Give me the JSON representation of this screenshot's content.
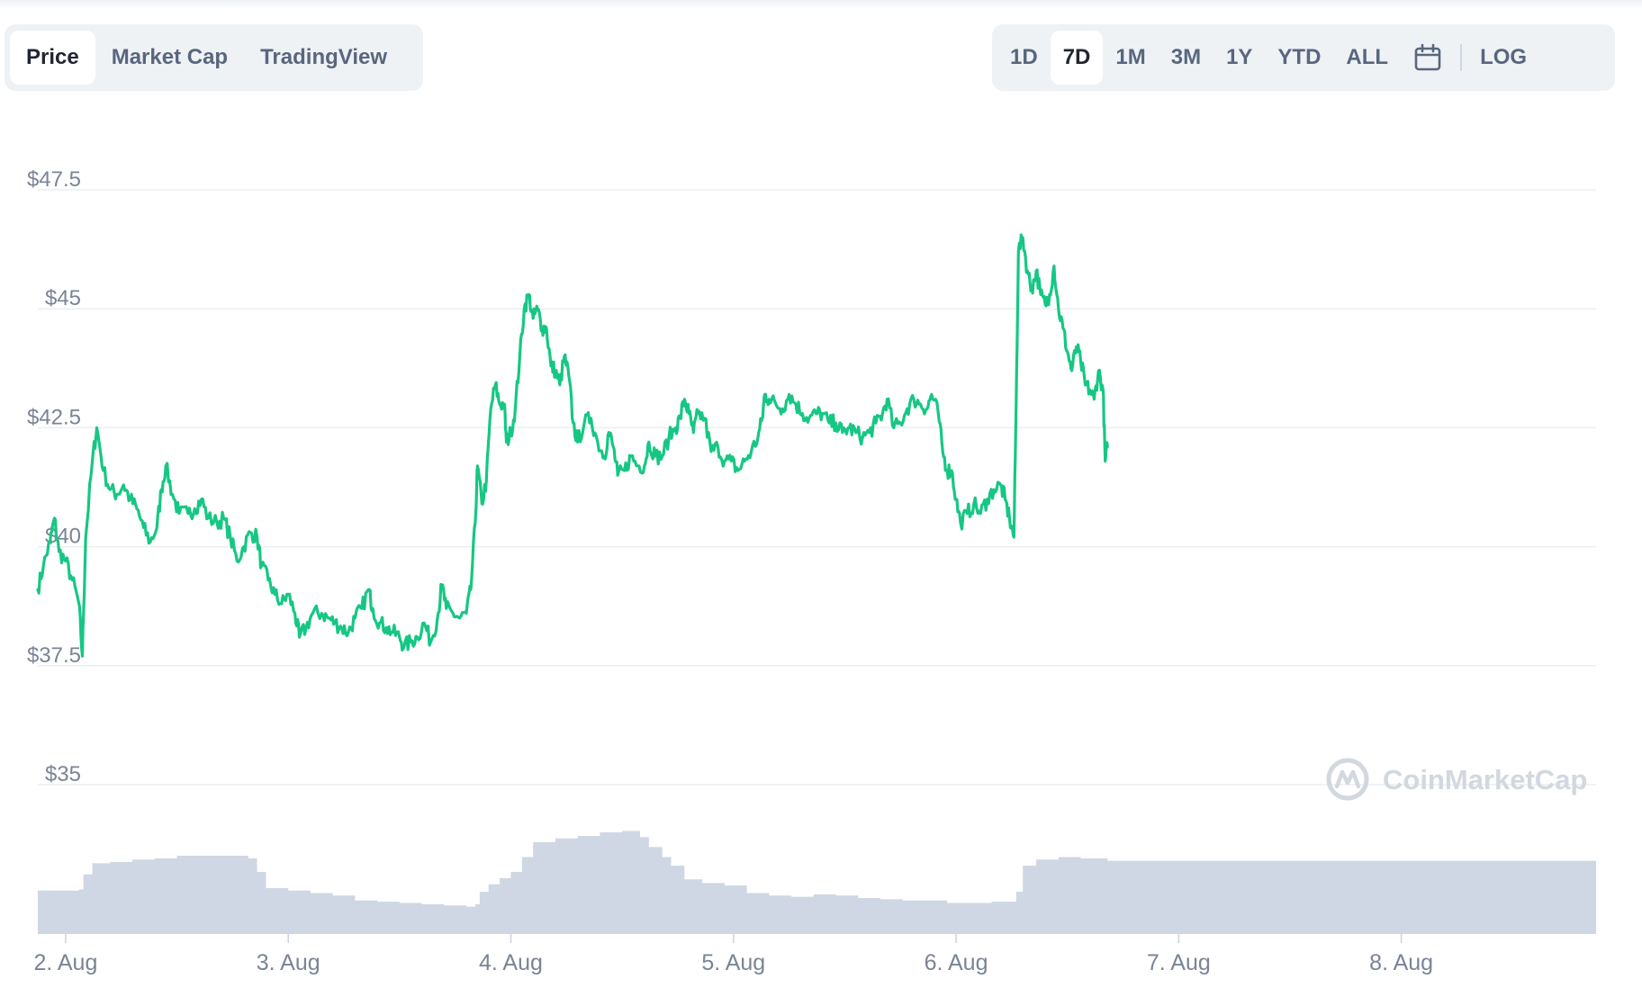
{
  "view_tabs": [
    {
      "label": "Price",
      "active": true
    },
    {
      "label": "Market Cap",
      "active": false
    },
    {
      "label": "TradingView",
      "active": false
    }
  ],
  "ranges": [
    {
      "label": "1D",
      "active": false
    },
    {
      "label": "7D",
      "active": true
    },
    {
      "label": "1M",
      "active": false
    },
    {
      "label": "3M",
      "active": false
    },
    {
      "label": "1Y",
      "active": false
    },
    {
      "label": "YTD",
      "active": false
    },
    {
      "label": "ALL",
      "active": false
    }
  ],
  "calendar_icon": "calendar-icon",
  "log_label": "LOG",
  "watermark": "CoinMarketCap",
  "colors": {
    "line": "#16c784",
    "volume": "#cfd6e4",
    "grid": "#eceef2",
    "axis_text": "#7a8496"
  },
  "chart_data": {
    "type": "line",
    "title": "",
    "xlabel": "",
    "ylabel": "",
    "y_ticks": [
      {
        "value": 47.5,
        "label": "$47.5"
      },
      {
        "value": 45,
        "label": "$45"
      },
      {
        "value": 42.5,
        "label": "$42.5"
      },
      {
        "value": 40,
        "label": "$40"
      },
      {
        "value": 37.5,
        "label": "$37.5"
      },
      {
        "value": 35,
        "label": "$35"
      }
    ],
    "ylim": [
      34.5,
      48.5
    ],
    "x_ticks": [
      {
        "t": 1.5,
        "label": "2. Aug"
      },
      {
        "t": 2.5,
        "label": "3. Aug"
      },
      {
        "t": 3.5,
        "label": "4. Aug"
      },
      {
        "t": 4.5,
        "label": "5. Aug"
      },
      {
        "t": 5.5,
        "label": "6. Aug"
      },
      {
        "t": 6.5,
        "label": "7. Aug"
      },
      {
        "t": 7.5,
        "label": "8. Aug"
      }
    ],
    "xlim": [
      1.375,
      8.375
    ],
    "grid": true,
    "series": [
      {
        "points": [
          [
            1.375,
            39.1
          ],
          [
            1.4,
            39.6
          ],
          [
            1.43,
            40.1
          ],
          [
            1.45,
            40.6
          ],
          [
            1.47,
            39.9
          ],
          [
            1.5,
            39.7
          ],
          [
            1.53,
            39.3
          ],
          [
            1.56,
            38.8
          ],
          [
            1.575,
            37.7
          ],
          [
            1.59,
            40.2
          ],
          [
            1.62,
            41.8
          ],
          [
            1.64,
            42.5
          ],
          [
            1.67,
            41.6
          ],
          [
            1.7,
            41.2
          ],
          [
            1.73,
            41.1
          ],
          [
            1.76,
            41.3
          ],
          [
            1.79,
            41.0
          ],
          [
            1.82,
            40.8
          ],
          [
            1.85,
            40.4
          ],
          [
            1.88,
            40.1
          ],
          [
            1.91,
            40.4
          ],
          [
            1.93,
            41.2
          ],
          [
            1.95,
            41.7
          ],
          [
            1.98,
            41.1
          ],
          [
            2.01,
            40.7
          ],
          [
            2.05,
            40.7
          ],
          [
            2.08,
            40.8
          ],
          [
            2.11,
            41.0
          ],
          [
            2.14,
            40.6
          ],
          [
            2.18,
            40.5
          ],
          [
            2.21,
            40.6
          ],
          [
            2.24,
            40.2
          ],
          [
            2.27,
            39.7
          ],
          [
            2.3,
            40.0
          ],
          [
            2.33,
            40.3
          ],
          [
            2.36,
            40.2
          ],
          [
            2.38,
            39.6
          ],
          [
            2.41,
            39.3
          ],
          [
            2.44,
            39.0
          ],
          [
            2.47,
            38.8
          ],
          [
            2.5,
            39.0
          ],
          [
            2.53,
            38.6
          ],
          [
            2.55,
            38.1
          ],
          [
            2.58,
            38.3
          ],
          [
            2.61,
            38.6
          ],
          [
            2.65,
            38.6
          ],
          [
            2.68,
            38.5
          ],
          [
            2.71,
            38.4
          ],
          [
            2.74,
            38.3
          ],
          [
            2.77,
            38.2
          ],
          [
            2.8,
            38.5
          ],
          [
            2.83,
            38.7
          ],
          [
            2.86,
            39.1
          ],
          [
            2.88,
            38.7
          ],
          [
            2.91,
            38.4
          ],
          [
            2.94,
            38.3
          ],
          [
            2.97,
            38.2
          ],
          [
            3.0,
            38.1
          ],
          [
            3.02,
            37.9
          ],
          [
            3.05,
            38.0
          ],
          [
            3.08,
            38.1
          ],
          [
            3.11,
            38.4
          ],
          [
            3.14,
            38.0
          ],
          [
            3.17,
            38.5
          ],
          [
            3.19,
            39.2
          ],
          [
            3.21,
            38.7
          ],
          [
            3.24,
            38.6
          ],
          [
            3.27,
            38.5
          ],
          [
            3.3,
            38.6
          ],
          [
            3.32,
            39.1
          ],
          [
            3.34,
            40.5
          ],
          [
            3.35,
            41.7
          ],
          [
            3.37,
            40.9
          ],
          [
            3.39,
            41.4
          ],
          [
            3.41,
            42.9
          ],
          [
            3.43,
            43.4
          ],
          [
            3.45,
            43.0
          ],
          [
            3.47,
            43.0
          ],
          [
            3.48,
            42.2
          ],
          [
            3.5,
            42.4
          ],
          [
            3.52,
            42.9
          ],
          [
            3.54,
            44.0
          ],
          [
            3.56,
            45.0
          ],
          [
            3.58,
            45.3
          ],
          [
            3.6,
            44.8
          ],
          [
            3.62,
            45.0
          ],
          [
            3.64,
            44.6
          ],
          [
            3.66,
            44.6
          ],
          [
            3.68,
            43.8
          ],
          [
            3.7,
            43.7
          ],
          [
            3.72,
            43.4
          ],
          [
            3.74,
            44.0
          ],
          [
            3.76,
            43.6
          ],
          [
            3.78,
            42.6
          ],
          [
            3.8,
            42.2
          ],
          [
            3.83,
            42.6
          ],
          [
            3.86,
            42.7
          ],
          [
            3.89,
            42.2
          ],
          [
            3.92,
            41.9
          ],
          [
            3.94,
            42.4
          ],
          [
            3.96,
            42.1
          ],
          [
            3.98,
            41.5
          ],
          [
            4.01,
            41.6
          ],
          [
            4.04,
            41.9
          ],
          [
            4.07,
            41.7
          ],
          [
            4.1,
            41.7
          ],
          [
            4.12,
            42.2
          ],
          [
            4.15,
            41.9
          ],
          [
            4.18,
            41.9
          ],
          [
            4.21,
            42.3
          ],
          [
            4.24,
            42.5
          ],
          [
            4.26,
            42.7
          ],
          [
            4.28,
            43.1
          ],
          [
            4.3,
            42.8
          ],
          [
            4.32,
            42.4
          ],
          [
            4.34,
            42.8
          ],
          [
            4.37,
            42.7
          ],
          [
            4.4,
            42.0
          ],
          [
            4.43,
            42.1
          ],
          [
            4.46,
            41.8
          ],
          [
            4.49,
            41.8
          ],
          [
            4.52,
            41.6
          ],
          [
            4.55,
            41.8
          ],
          [
            4.58,
            42.0
          ],
          [
            4.61,
            42.3
          ],
          [
            4.63,
            42.7
          ],
          [
            4.64,
            43.2
          ],
          [
            4.66,
            43.1
          ],
          [
            4.69,
            43.0
          ],
          [
            4.72,
            42.9
          ],
          [
            4.75,
            43.2
          ],
          [
            4.78,
            43.0
          ],
          [
            4.81,
            42.8
          ],
          [
            4.84,
            42.7
          ],
          [
            4.87,
            42.8
          ],
          [
            4.9,
            42.8
          ],
          [
            4.93,
            42.6
          ],
          [
            4.96,
            42.6
          ],
          [
            4.99,
            42.4
          ],
          [
            5.02,
            42.5
          ],
          [
            5.05,
            42.4
          ],
          [
            5.08,
            42.3
          ],
          [
            5.11,
            42.4
          ],
          [
            5.14,
            42.6
          ],
          [
            5.17,
            42.8
          ],
          [
            5.19,
            43.1
          ],
          [
            5.22,
            42.5
          ],
          [
            5.25,
            42.6
          ],
          [
            5.28,
            42.9
          ],
          [
            5.31,
            43.1
          ],
          [
            5.34,
            43.0
          ],
          [
            5.37,
            42.9
          ],
          [
            5.39,
            43.2
          ],
          [
            5.42,
            42.8
          ],
          [
            5.44,
            42.0
          ],
          [
            5.46,
            41.6
          ],
          [
            5.48,
            41.6
          ],
          [
            5.5,
            41.0
          ],
          [
            5.52,
            40.5
          ],
          [
            5.55,
            40.7
          ],
          [
            5.58,
            40.9
          ],
          [
            5.61,
            40.7
          ],
          [
            5.64,
            41.0
          ],
          [
            5.67,
            41.2
          ],
          [
            5.7,
            41.3
          ],
          [
            5.72,
            41.0
          ],
          [
            5.74,
            40.6
          ],
          [
            5.76,
            40.2
          ],
          [
            5.77,
            43.0
          ],
          [
            5.78,
            46.2
          ],
          [
            5.8,
            46.5
          ],
          [
            5.82,
            45.8
          ],
          [
            5.84,
            45.4
          ],
          [
            5.86,
            45.8
          ],
          [
            5.88,
            45.3
          ],
          [
            5.9,
            45.1
          ],
          [
            5.92,
            45.3
          ],
          [
            5.94,
            45.9
          ],
          [
            5.96,
            45.0
          ],
          [
            5.98,
            44.6
          ],
          [
            6.0,
            44.1
          ],
          [
            6.02,
            43.7
          ],
          [
            6.04,
            44.2
          ],
          [
            6.06,
            43.9
          ],
          [
            6.08,
            43.4
          ],
          [
            6.1,
            43.3
          ],
          [
            6.12,
            43.1
          ],
          [
            6.14,
            43.7
          ],
          [
            6.16,
            43.3
          ],
          [
            6.17,
            41.8
          ],
          [
            6.18,
            42.1
          ]
        ]
      }
    ],
    "volume_rel": [
      [
        1.375,
        0.35
      ],
      [
        1.56,
        0.36
      ],
      [
        1.58,
        0.48
      ],
      [
        1.62,
        0.57
      ],
      [
        1.7,
        0.58
      ],
      [
        1.8,
        0.6
      ],
      [
        1.9,
        0.61
      ],
      [
        2.0,
        0.63
      ],
      [
        2.1,
        0.63
      ],
      [
        2.2,
        0.63
      ],
      [
        2.32,
        0.61
      ],
      [
        2.36,
        0.5
      ],
      [
        2.4,
        0.37
      ],
      [
        2.5,
        0.35
      ],
      [
        2.6,
        0.33
      ],
      [
        2.7,
        0.31
      ],
      [
        2.8,
        0.27
      ],
      [
        2.9,
        0.26
      ],
      [
        3.0,
        0.25
      ],
      [
        3.1,
        0.24
      ],
      [
        3.2,
        0.23
      ],
      [
        3.3,
        0.22
      ],
      [
        3.34,
        0.24
      ],
      [
        3.36,
        0.34
      ],
      [
        3.4,
        0.4
      ],
      [
        3.45,
        0.45
      ],
      [
        3.5,
        0.5
      ],
      [
        3.55,
        0.62
      ],
      [
        3.6,
        0.74
      ],
      [
        3.7,
        0.77
      ],
      [
        3.8,
        0.79
      ],
      [
        3.9,
        0.82
      ],
      [
        4.0,
        0.83
      ],
      [
        4.05,
        0.83
      ],
      [
        4.08,
        0.78
      ],
      [
        4.12,
        0.7
      ],
      [
        4.18,
        0.62
      ],
      [
        4.22,
        0.55
      ],
      [
        4.28,
        0.44
      ],
      [
        4.36,
        0.41
      ],
      [
        4.46,
        0.39
      ],
      [
        4.56,
        0.33
      ],
      [
        4.66,
        0.31
      ],
      [
        4.76,
        0.3
      ],
      [
        4.86,
        0.32
      ],
      [
        4.96,
        0.31
      ],
      [
        5.06,
        0.29
      ],
      [
        5.16,
        0.28
      ],
      [
        5.26,
        0.27
      ],
      [
        5.36,
        0.27
      ],
      [
        5.46,
        0.25
      ],
      [
        5.56,
        0.25
      ],
      [
        5.66,
        0.26
      ],
      [
        5.76,
        0.26
      ],
      [
        5.77,
        0.34
      ],
      [
        5.8,
        0.55
      ],
      [
        5.86,
        0.6
      ],
      [
        5.96,
        0.62
      ],
      [
        6.06,
        0.61
      ],
      [
        6.18,
        0.59
      ]
    ]
  }
}
